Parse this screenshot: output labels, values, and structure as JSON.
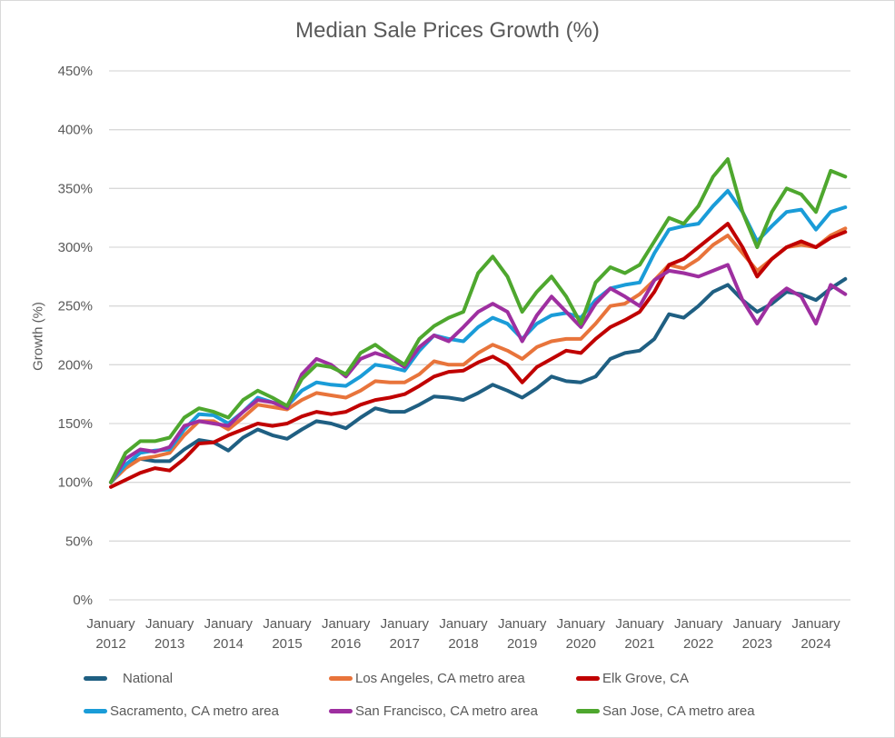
{
  "chart_data": {
    "type": "line",
    "title": "Median Sale Prices Growth (%)",
    "xlabel": "",
    "ylabel": "Growth (%)",
    "ylim": [
      0,
      450
    ],
    "yticks": [
      "0%",
      "50%",
      "100%",
      "150%",
      "200%",
      "250%",
      "300%",
      "350%",
      "400%",
      "450%"
    ],
    "ytick_values": [
      0,
      50,
      100,
      150,
      200,
      250,
      300,
      350,
      400,
      450
    ],
    "grid": true,
    "legend_position": "bottom",
    "x_start": "2012-01",
    "x_end": "2024-07",
    "xticks": [
      {
        "month": 0,
        "label": [
          "January",
          "2012"
        ]
      },
      {
        "month": 12,
        "label": [
          "January",
          "2013"
        ]
      },
      {
        "month": 24,
        "label": [
          "January",
          "2014"
        ]
      },
      {
        "month": 36,
        "label": [
          "January",
          "2015"
        ]
      },
      {
        "month": 48,
        "label": [
          "January",
          "2016"
        ]
      },
      {
        "month": 60,
        "label": [
          "January",
          "2017"
        ]
      },
      {
        "month": 72,
        "label": [
          "January",
          "2018"
        ]
      },
      {
        "month": 84,
        "label": [
          "January",
          "2019"
        ]
      },
      {
        "month": 96,
        "label": [
          "January",
          "2020"
        ]
      },
      {
        "month": 108,
        "label": [
          "January",
          "2021"
        ]
      },
      {
        "month": 120,
        "label": [
          "January",
          "2022"
        ]
      },
      {
        "month": 132,
        "label": [
          "January",
          "2023"
        ]
      },
      {
        "month": 144,
        "label": [
          "January",
          "2024"
        ]
      }
    ],
    "x_months": [
      0,
      3,
      6,
      9,
      12,
      15,
      18,
      21,
      24,
      27,
      30,
      33,
      36,
      39,
      42,
      45,
      48,
      51,
      54,
      57,
      60,
      63,
      66,
      69,
      72,
      75,
      78,
      81,
      84,
      87,
      90,
      93,
      96,
      99,
      102,
      105,
      108,
      111,
      114,
      117,
      120,
      123,
      126,
      129,
      132,
      135,
      138,
      141,
      144,
      147,
      150
    ],
    "series": [
      {
        "name": "National",
        "color": "#1f5f82",
        "values": [
          100,
          115,
          120,
          118,
          118,
          128,
          136,
          134,
          127,
          138,
          145,
          140,
          137,
          145,
          152,
          150,
          146,
          155,
          163,
          160,
          160,
          166,
          173,
          172,
          170,
          176,
          183,
          178,
          172,
          180,
          190,
          186,
          185,
          190,
          205,
          210,
          212,
          222,
          243,
          240,
          250,
          262,
          268,
          255,
          245,
          252,
          262,
          260,
          255,
          265,
          273
        ]
      },
      {
        "name": "Los Angeles, CA metro area",
        "color": "#e8743b",
        "values": [
          100,
          112,
          120,
          122,
          125,
          140,
          152,
          152,
          145,
          155,
          166,
          164,
          162,
          170,
          176,
          174,
          172,
          178,
          186,
          185,
          185,
          192,
          203,
          200,
          200,
          210,
          217,
          212,
          205,
          215,
          220,
          222,
          222,
          235,
          250,
          252,
          260,
          272,
          285,
          282,
          290,
          302,
          310,
          295,
          280,
          290,
          300,
          302,
          300,
          310,
          316
        ]
      },
      {
        "name": "Elk Grove, CA",
        "color": "#c00000",
        "values": [
          96,
          102,
          108,
          112,
          110,
          120,
          133,
          134,
          140,
          145,
          150,
          148,
          150,
          156,
          160,
          158,
          160,
          166,
          170,
          172,
          175,
          182,
          190,
          194,
          195,
          202,
          207,
          200,
          185,
          198,
          205,
          212,
          210,
          222,
          232,
          238,
          245,
          262,
          285,
          290,
          300,
          310,
          320,
          300,
          275,
          290,
          300,
          305,
          300,
          308,
          313
        ]
      },
      {
        "name": "Sacramento, CA metro area",
        "color": "#1a9cd8",
        "values": [
          100,
          115,
          125,
          127,
          128,
          145,
          158,
          157,
          150,
          160,
          172,
          168,
          165,
          178,
          185,
          183,
          182,
          190,
          200,
          198,
          195,
          212,
          225,
          222,
          220,
          232,
          240,
          235,
          222,
          235,
          242,
          244,
          240,
          255,
          265,
          268,
          270,
          295,
          315,
          318,
          320,
          335,
          348,
          330,
          305,
          318,
          330,
          332,
          315,
          330,
          334
        ]
      },
      {
        "name": "San Francisco, CA metro area",
        "color": "#9e2fa0",
        "values": [
          100,
          120,
          128,
          126,
          130,
          148,
          152,
          150,
          148,
          160,
          170,
          168,
          163,
          192,
          205,
          200,
          190,
          205,
          210,
          206,
          198,
          215,
          225,
          220,
          232,
          245,
          252,
          245,
          220,
          242,
          258,
          245,
          232,
          252,
          265,
          258,
          250,
          272,
          280,
          278,
          275,
          280,
          285,
          255,
          235,
          255,
          265,
          258,
          235,
          268,
          260
        ]
      },
      {
        "name": "San Jose, CA metro area",
        "color": "#4ea72e",
        "values": [
          100,
          125,
          135,
          135,
          138,
          155,
          163,
          160,
          155,
          170,
          178,
          172,
          165,
          188,
          200,
          198,
          192,
          210,
          217,
          208,
          200,
          222,
          233,
          240,
          245,
          278,
          292,
          275,
          245,
          262,
          275,
          258,
          235,
          270,
          283,
          278,
          285,
          305,
          325,
          320,
          335,
          360,
          375,
          330,
          300,
          330,
          350,
          345,
          330,
          365,
          360
        ]
      }
    ]
  }
}
